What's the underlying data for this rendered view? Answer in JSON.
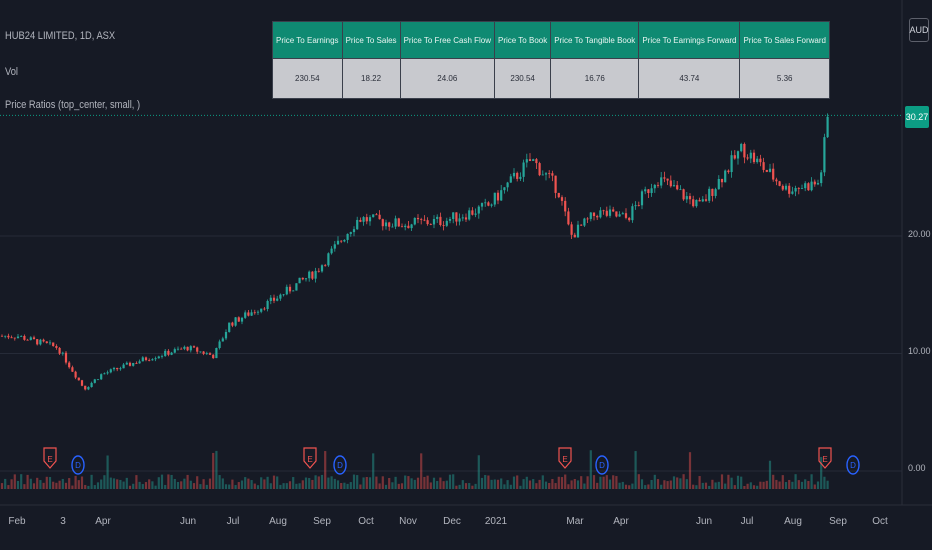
{
  "legend": {
    "symbol": "HUB24 LIMITED, 1D, ASX",
    "volume": "Vol",
    "indicator": "Price Ratios (top_center, small, )"
  },
  "currency": "AUD",
  "price_badge": "30.27",
  "ratio_table": {
    "headers": [
      "Price To Earnings",
      "Price To Sales",
      "Price To Free Cash Flow",
      "Price To Book",
      "Price To Tangible Book",
      "Price To Earnings Forward",
      "Price To Sales Forward"
    ],
    "values": [
      "230.54",
      "18.22",
      "24.06",
      "230.54",
      "16.76",
      "43.74",
      "5.36"
    ]
  },
  "colors": {
    "up": "#26a69a",
    "down": "#ef5350",
    "earnings": "#ef5350",
    "dividend": "#2962ff"
  },
  "chart_data": {
    "type": "line",
    "yaxis": {
      "ticks": [
        "20.00",
        "10.00",
        "0.00"
      ],
      "tick_values": [
        20,
        10,
        0
      ]
    },
    "xaxis": {
      "ticks": [
        "Feb",
        "3",
        "Apr",
        "Jun",
        "Jul",
        "Aug",
        "Sep",
        "Oct",
        "Nov",
        "Dec",
        "2021",
        "Mar",
        "Apr",
        "Jun",
        "Jul",
        "Aug",
        "Sep",
        "Oct"
      ]
    },
    "series": [
      {
        "x": [
          "2020-02-01",
          "2020-03-01",
          "2020-03-20",
          "2020-04-01",
          "2020-05-01",
          "2020-06-01",
          "2020-06-20",
          "2020-07-01",
          "2020-08-01",
          "2020-09-01",
          "2020-10-01",
          "2020-11-01",
          "2020-12-01",
          "2021-01-01",
          "2021-02-01",
          "2021-02-20",
          "2021-03-01",
          "2021-03-20",
          "2021-04-10",
          "2021-05-01",
          "2021-06-01",
          "2021-07-01",
          "2021-08-01",
          "2021-08-25",
          "2021-08-31"
        ],
        "values": [
          11.5,
          10.5,
          7.0,
          8.2,
          9.5,
          10.5,
          9.8,
          12.5,
          14.5,
          17.0,
          21.5,
          21.0,
          21.3,
          22.5,
          26.5,
          24.0,
          20.0,
          22.0,
          21.5,
          25.0,
          22.5,
          27.5,
          24.0,
          24.5,
          30.27
        ]
      }
    ],
    "earnings_markers": [
      "E",
      "E",
      "E",
      "E"
    ],
    "dividend_markers": [
      "D",
      "D",
      "D",
      "D"
    ]
  }
}
